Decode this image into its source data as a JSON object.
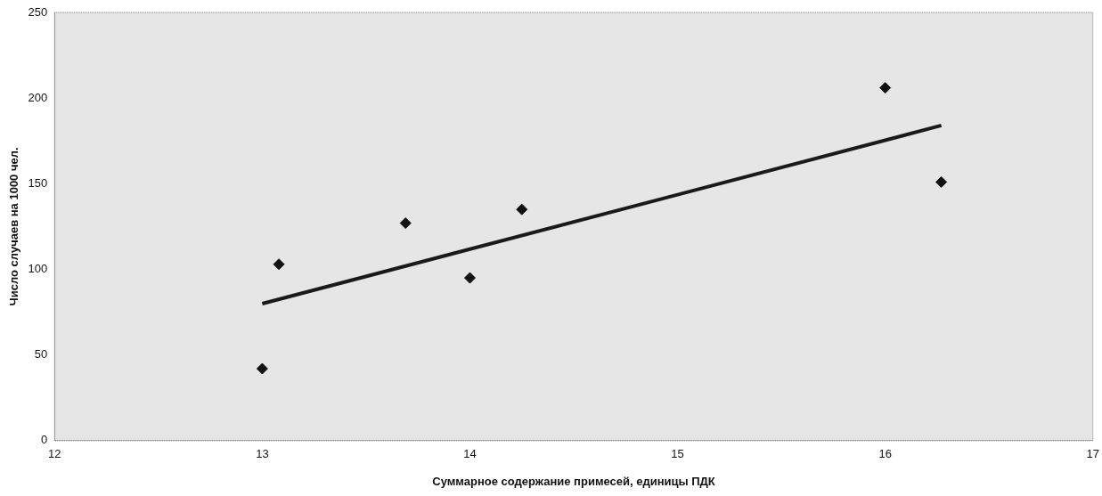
{
  "chart_data": {
    "type": "scatter",
    "xlabel": "Суммарное содержание примесей, единицы ПДК",
    "ylabel": "Число случаев на 1000 чел.",
    "xlim": [
      12,
      17
    ],
    "xticks": [
      12,
      13,
      14,
      15,
      16,
      17
    ],
    "ylim": [
      0,
      250
    ],
    "yticks": [
      0,
      50,
      100,
      150,
      200,
      250
    ],
    "grid": false,
    "legend": false,
    "marker": "diamond",
    "series": [
      {
        "color": "#111111",
        "x": [
          13.0,
          13.08,
          13.69,
          14.0,
          14.25,
          16.0,
          16.27
        ],
        "values": [
          42,
          103,
          127,
          95,
          135,
          206,
          151
        ]
      },
      {
        "type": "line",
        "marker": "none",
        "color": "#1a1a1a",
        "x": [
          13.0,
          16.27
        ],
        "values": [
          80,
          184
        ]
      }
    ]
  }
}
